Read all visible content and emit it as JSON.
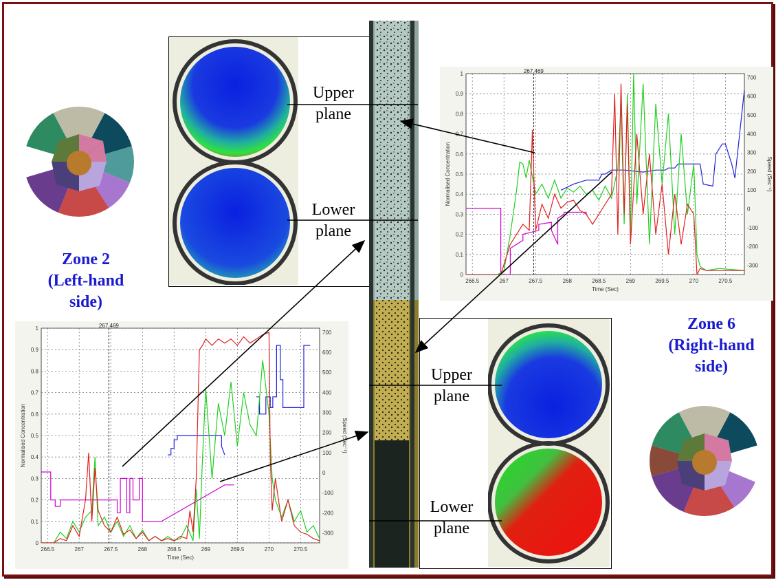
{
  "zones": {
    "left": {
      "line1": "Zone 2",
      "line2": "(Left-hand",
      "line3": "side)"
    },
    "right": {
      "line1": "Zone 6",
      "line2": "(Right-hand",
      "line3": "side)"
    }
  },
  "planes": {
    "top_upper": {
      "line1": "Upper",
      "line2": "plane"
    },
    "top_lower": {
      "line1": "Lower",
      "line2": "plane"
    },
    "bottom_upper": {
      "line1": "Upper",
      "line2": "plane"
    },
    "bottom_lower": {
      "line1": "Lower",
      "line2": "plane"
    }
  },
  "chart_data": [
    {
      "type": "line",
      "position": "top-right",
      "marker_label": "267.469",
      "xlabel": "Time (Sec)",
      "ylabel": "Normalised Concentration",
      "y2label": "Speed (Sec⁻¹)",
      "xlim": [
        266.4,
        270.8
      ],
      "ylim": [
        0,
        1
      ],
      "y2lim": [
        -350,
        720
      ],
      "x_ticks": [
        "266.5",
        "267",
        "267.5",
        "268",
        "268.5",
        "269",
        "269.5",
        "270",
        "270.5"
      ],
      "y_ticks": [
        "0",
        "0.1",
        "0.2",
        "0.3",
        "0.4",
        "0.5",
        "0.6",
        "0.7",
        "0.8",
        "0.9",
        "1"
      ],
      "y2_ticks": [
        "-300",
        "-200",
        "-100",
        "0",
        "100",
        "200",
        "300",
        "400",
        "500",
        "600",
        "700"
      ],
      "grid": true,
      "series": [
        {
          "color": "#d000d0",
          "x": [
            266.4,
            266.95,
            266.95,
            267.1,
            267.1,
            267.3,
            267.3,
            267.55,
            267.55,
            267.75,
            267.75,
            267.85,
            267.85,
            267.95,
            267.95,
            268.3,
            268.3
          ],
          "y": [
            0.33,
            0.33,
            0.0,
            0.0,
            0.13,
            0.17,
            0.2,
            0.22,
            0.25,
            0.26,
            0.22,
            0.15,
            0.28,
            0.3,
            0.31,
            0.31,
            0.3
          ]
        },
        {
          "color": "#2020e0",
          "x": [
            267.9,
            268.1,
            268.3,
            268.5,
            268.55,
            268.6,
            268.65,
            268.7,
            268.9,
            269.2,
            269.4,
            269.55,
            269.6,
            269.65,
            269.7,
            269.75,
            269.85,
            270.1,
            270.15,
            270.3,
            270.35,
            270.45,
            270.5,
            270.55,
            270.6,
            270.65,
            270.8
          ],
          "y": [
            0.42,
            0.45,
            0.47,
            0.47,
            0.5,
            0.5,
            0.51,
            0.52,
            0.52,
            0.51,
            0.52,
            0.52,
            0.53,
            0.53,
            0.53,
            0.55,
            0.55,
            0.55,
            0.45,
            0.44,
            0.6,
            0.65,
            0.65,
            0.6,
            0.55,
            0.48,
            0.92
          ]
        },
        {
          "color": "#20d020",
          "x": [
            266.4,
            266.9,
            267.0,
            267.1,
            267.2,
            267.25,
            267.3,
            267.35,
            267.4,
            267.5,
            267.6,
            267.7,
            267.8,
            267.9,
            268.0,
            268.1,
            268.2,
            268.3,
            268.4,
            268.5,
            268.6,
            268.7,
            268.8,
            268.85,
            268.9,
            268.95,
            269.0,
            269.05,
            269.1,
            269.2,
            269.3,
            269.4,
            269.5,
            269.6,
            269.7,
            269.8,
            269.9,
            270.0,
            270.05,
            270.1,
            270.2,
            270.4,
            270.8
          ],
          "y": [
            0.0,
            0.0,
            0.02,
            0.2,
            0.42,
            0.56,
            0.55,
            0.48,
            0.57,
            0.4,
            0.45,
            0.38,
            0.47,
            0.38,
            0.43,
            0.41,
            0.44,
            0.4,
            0.42,
            0.37,
            0.44,
            0.38,
            0.53,
            0.85,
            0.25,
            0.9,
            0.2,
            1.0,
            0.35,
            0.95,
            0.15,
            0.85,
            0.45,
            0.8,
            0.2,
            0.7,
            0.3,
            0.55,
            0.1,
            0.04,
            0.02,
            0.03,
            0.02
          ]
        },
        {
          "color": "#e02020",
          "x": [
            266.4,
            266.95,
            267.0,
            267.1,
            267.2,
            267.3,
            267.4,
            267.45,
            267.5,
            267.6,
            267.7,
            267.8,
            267.9,
            268.0,
            268.1,
            268.2,
            268.3,
            268.4,
            268.5,
            268.6,
            268.7,
            268.75,
            268.8,
            268.85,
            268.9,
            268.95,
            269.0,
            269.1,
            269.2,
            269.3,
            269.4,
            269.5,
            269.6,
            269.7,
            269.8,
            269.9,
            270.0,
            270.05,
            270.1,
            270.2,
            270.4,
            270.8
          ],
          "y": [
            0.0,
            0.0,
            0.05,
            0.15,
            0.2,
            0.25,
            0.22,
            0.72,
            0.22,
            0.35,
            0.28,
            0.4,
            0.33,
            0.36,
            0.37,
            0.32,
            0.3,
            0.25,
            0.3,
            0.35,
            0.4,
            0.9,
            0.2,
            0.95,
            0.3,
            0.85,
            0.15,
            0.7,
            0.3,
            0.6,
            0.2,
            0.45,
            0.1,
            0.4,
            0.15,
            0.35,
            0.3,
            0.0,
            0.03,
            0.02,
            0.02,
            0.02
          ]
        }
      ]
    },
    {
      "type": "line",
      "position": "bottom-left",
      "marker_label": "267.469",
      "xlabel": "Time (Sec)",
      "ylabel": "Normalised Concentration",
      "y2label": "Speed (Sec⁻¹)",
      "xlim": [
        266.4,
        270.8
      ],
      "ylim": [
        0,
        1
      ],
      "y2lim": [
        -350,
        720
      ],
      "x_ticks": [
        "266.5",
        "267",
        "267.5",
        "268",
        "268.5",
        "269",
        "269.5",
        "270",
        "270.5"
      ],
      "y_ticks": [
        "0",
        "0.1",
        "0.2",
        "0.3",
        "0.4",
        "0.5",
        "0.6",
        "0.7",
        "0.8",
        "0.9",
        "1"
      ],
      "y2_ticks": [
        "-300",
        "-200",
        "-100",
        "0",
        "100",
        "200",
        "300",
        "400",
        "500",
        "600",
        "700"
      ],
      "grid": true,
      "series": [
        {
          "color": "#d000d0",
          "x": [
            266.4,
            266.55,
            266.55,
            266.62,
            266.62,
            266.7,
            266.7,
            267.6,
            267.6,
            267.65,
            267.65,
            267.75,
            267.75,
            267.8,
            267.8,
            267.85,
            267.85,
            267.95,
            267.95,
            268.0,
            268.0,
            268.3,
            269.3,
            269.45
          ],
          "y": [
            0.33,
            0.33,
            0.2,
            0.2,
            0.17,
            0.17,
            0.2,
            0.2,
            0.14,
            0.14,
            0.3,
            0.3,
            0.14,
            0.14,
            0.3,
            0.3,
            0.2,
            0.2,
            0.3,
            0.3,
            0.1,
            0.1,
            0.27,
            0.27
          ]
        },
        {
          "color": "#2020e0",
          "x": [
            268.4,
            268.45,
            268.45,
            268.5,
            268.5,
            268.55,
            268.55,
            269.25,
            269.25,
            269.3
          ],
          "y": [
            0.41,
            0.41,
            0.44,
            0.44,
            0.48,
            0.48,
            0.5,
            0.5,
            0.45,
            0.41
          ]
        },
        {
          "color": "#2020e0",
          "x": [
            269.8,
            269.85,
            269.85,
            269.95,
            269.95,
            270.02,
            270.02,
            270.06,
            270.06,
            270.12,
            270.12,
            270.18,
            270.18,
            270.22,
            270.22,
            270.55,
            270.55,
            270.6,
            270.6,
            270.65
          ],
          "y": [
            0.68,
            0.68,
            0.6,
            0.6,
            0.68,
            0.68,
            0.63,
            0.63,
            0.68,
            0.68,
            0.92,
            0.92,
            0.76,
            0.76,
            0.63,
            0.63,
            0.92,
            0.92,
            0.92,
            0.92
          ]
        },
        {
          "color": "#20d020",
          "x": [
            266.4,
            266.6,
            266.7,
            266.8,
            266.9,
            267.0,
            267.1,
            267.2,
            267.25,
            267.3,
            267.4,
            267.5,
            267.6,
            267.7,
            267.8,
            267.9,
            268.0,
            268.1,
            268.2,
            268.3,
            268.4,
            268.5,
            268.6,
            268.7,
            268.8,
            268.85,
            268.9,
            268.95,
            269.0,
            269.1,
            269.2,
            269.3,
            269.4,
            269.5,
            269.6,
            269.7,
            269.8,
            269.9,
            270.0,
            270.05,
            270.1,
            270.2,
            270.3,
            270.4,
            270.5,
            270.6,
            270.7,
            270.8
          ],
          "y": [
            0.0,
            0.0,
            0.05,
            0.02,
            0.1,
            0.05,
            0.12,
            0.15,
            0.4,
            0.08,
            0.12,
            0.05,
            0.1,
            0.03,
            0.08,
            0.02,
            0.06,
            0.01,
            0.03,
            0.01,
            0.03,
            0.01,
            0.02,
            0.08,
            0.01,
            0.25,
            0.02,
            0.4,
            0.72,
            0.3,
            0.65,
            0.5,
            0.75,
            0.45,
            0.7,
            0.55,
            0.5,
            0.85,
            0.6,
            0.3,
            0.2,
            0.12,
            0.2,
            0.1,
            0.15,
            0.05,
            0.08,
            0.02
          ]
        },
        {
          "color": "#e02020",
          "x": [
            266.4,
            266.6,
            266.7,
            266.8,
            266.9,
            267.0,
            267.1,
            267.15,
            267.2,
            267.25,
            267.3,
            267.4,
            267.5,
            267.6,
            267.7,
            267.8,
            267.9,
            268.0,
            268.1,
            268.2,
            268.3,
            268.4,
            268.5,
            268.6,
            268.7,
            268.75,
            268.8,
            268.85,
            268.9,
            268.95,
            269.0,
            269.1,
            269.2,
            269.3,
            269.4,
            269.5,
            269.6,
            269.7,
            269.8,
            269.9,
            270.0,
            270.02,
            270.05,
            270.1,
            270.2,
            270.3,
            270.4,
            270.5,
            270.6,
            270.7,
            270.8
          ],
          "y": [
            0.0,
            0.0,
            0.02,
            0.01,
            0.08,
            0.03,
            0.2,
            0.42,
            0.1,
            0.35,
            0.15,
            0.08,
            0.05,
            0.12,
            0.04,
            0.06,
            0.02,
            0.05,
            0.01,
            0.03,
            0.01,
            0.02,
            0.01,
            0.03,
            0.02,
            0.15,
            0.05,
            0.3,
            0.9,
            0.92,
            0.95,
            0.92,
            0.95,
            0.93,
            0.95,
            0.92,
            0.96,
            0.93,
            0.95,
            0.97,
            0.98,
            0.4,
            0.15,
            0.3,
            0.1,
            0.2,
            0.08,
            0.05,
            0.04,
            0.02,
            0.01
          ]
        }
      ]
    }
  ],
  "colors": {
    "frame": "#7a1010",
    "zone_text": "#1a1ad0",
    "panel": "#eeeee0"
  }
}
